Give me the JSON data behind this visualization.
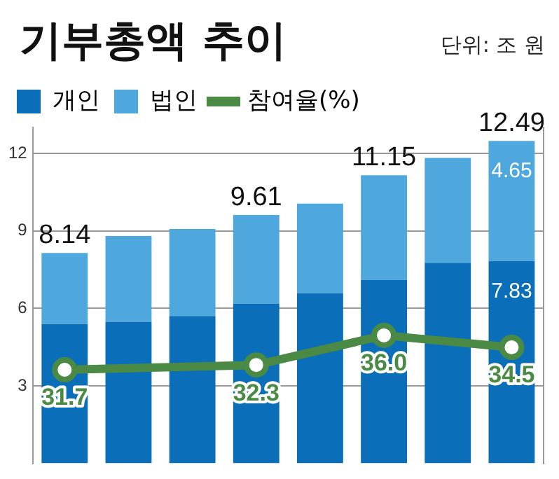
{
  "chart_data": {
    "type": "bar",
    "title": "기부총액 추이",
    "annotations": [
      "단위: 조 원"
    ],
    "categories": [
      null,
      null,
      null,
      null,
      null,
      null,
      null,
      null
    ],
    "stacked": true,
    "series": [
      {
        "name": "개인",
        "color": "#0a6fb8",
        "values": [
          5.39,
          5.48,
          5.7,
          6.18,
          6.58,
          7.1,
          7.76,
          7.83
        ],
        "value_labels": [
          null,
          null,
          null,
          null,
          null,
          null,
          null,
          "7.83"
        ]
      },
      {
        "name": "법인",
        "color": "#4ea8de",
        "values": [
          2.75,
          3.32,
          3.37,
          3.43,
          3.47,
          4.05,
          4.06,
          4.65
        ],
        "value_labels": [
          null,
          null,
          null,
          null,
          null,
          null,
          null,
          "4.65"
        ]
      },
      {
        "name": "참여율(%)",
        "type": "line",
        "axis": "y2",
        "color": "#4a8a45",
        "values": [
          31.7,
          null,
          null,
          32.3,
          null,
          36.0,
          null,
          34.5
        ],
        "value_labels": [
          "31.7",
          null,
          null,
          "32.3",
          null,
          "36.0",
          null,
          "34.5"
        ]
      }
    ],
    "totals": [
      "8.14",
      null,
      null,
      "9.61",
      null,
      "11.15",
      null,
      "12.49"
    ],
    "ylim": [
      0,
      13
    ],
    "yticks": [
      3,
      6,
      9,
      12
    ],
    "y2lim": [
      20,
      62
    ],
    "grid": "y",
    "legend": "top left",
    "marker": "circle",
    "tick_labels": "y"
  }
}
